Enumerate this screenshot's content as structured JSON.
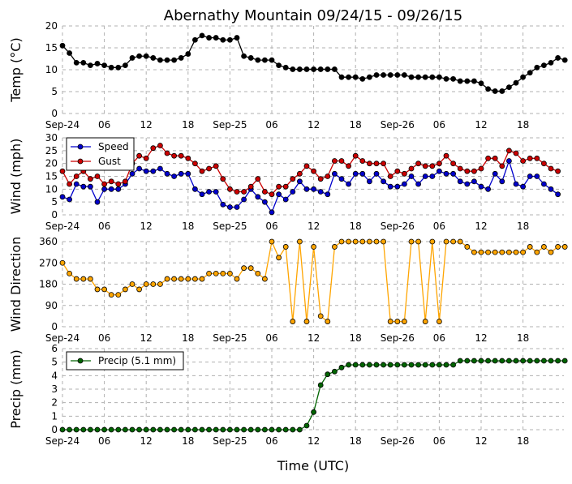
{
  "chart_data": [
    {
      "type": "line",
      "title": "Abernathy Mountain 09/24/15 - 09/26/15",
      "ylabel": "Temp (°C)",
      "ylim": [
        0,
        20
      ],
      "yticks": [
        "0",
        "5",
        "10",
        "15",
        "20"
      ],
      "x_start": "2015-09-24 00:00",
      "x_step_hours": 1,
      "xticks": [
        "Sep-24",
        "06",
        "12",
        "18",
        "Sep-25",
        "06",
        "12",
        "18",
        "Sep-26",
        "06",
        "12",
        "18"
      ],
      "grid": true,
      "series": [
        {
          "color": "#000000",
          "values": [
            15.5,
            13.8,
            11.6,
            11.6,
            11.0,
            11.4,
            11.0,
            10.5,
            10.5,
            11.0,
            12.7,
            13.1,
            13.1,
            12.7,
            12.2,
            12.2,
            12.2,
            12.7,
            13.6,
            16.8,
            17.8,
            17.3,
            17.3,
            16.8,
            16.8,
            17.3,
            13.1,
            12.7,
            12.2,
            12.2,
            12.2,
            11.0,
            10.5,
            10.1,
            10.1,
            10.1,
            10.1,
            10.1,
            10.1,
            10.1,
            8.3,
            8.3,
            8.3,
            7.9,
            8.3,
            8.8,
            8.8,
            8.8,
            8.8,
            8.8,
            8.3,
            8.3,
            8.3,
            8.3,
            8.3,
            7.9,
            7.9,
            7.4,
            7.4,
            7.4,
            6.9,
            5.6,
            5.1,
            5.1,
            6.0,
            7.0,
            8.3,
            9.3,
            10.5,
            11.0,
            11.6,
            12.7,
            12.2
          ]
        }
      ]
    },
    {
      "type": "line",
      "ylabel": "Wind (mph)",
      "ylim": [
        0,
        30
      ],
      "yticks": [
        "0",
        "5",
        "10",
        "15",
        "20",
        "25",
        "30"
      ],
      "xticks": [
        "Sep-24",
        "06",
        "12",
        "18",
        "Sep-25",
        "06",
        "12",
        "18",
        "Sep-26",
        "06",
        "12",
        "18"
      ],
      "grid": true,
      "legend": "upper-left",
      "series": [
        {
          "name": "Speed",
          "color": "#0000cc",
          "values": [
            7,
            6,
            12,
            11,
            11,
            5,
            10,
            10,
            10,
            12,
            16,
            18,
            17,
            17,
            18,
            16,
            15,
            16,
            16,
            10,
            8,
            9,
            9,
            4,
            3,
            3,
            6,
            10,
            7,
            5,
            1,
            8,
            6,
            9,
            13,
            10,
            10,
            9,
            8,
            16,
            14,
            12,
            16,
            16,
            13,
            16,
            13,
            11,
            11,
            12,
            15,
            12,
            15,
            15,
            17,
            16,
            16,
            13,
            12,
            13,
            11,
            10,
            16,
            13,
            21,
            12,
            11,
            15,
            15,
            12,
            10,
            8
          ]
        },
        {
          "name": "Gust",
          "color": "#cc0000",
          "values": [
            17,
            12,
            15,
            17,
            14,
            15,
            12,
            13,
            12,
            13,
            20,
            23,
            22,
            26,
            27,
            24,
            23,
            23,
            22,
            20,
            17,
            18,
            19,
            14,
            10,
            9,
            9,
            11,
            14,
            9,
            8,
            11,
            11,
            14,
            16,
            19,
            17,
            14,
            15,
            21,
            21,
            19,
            23,
            21,
            20,
            20,
            20,
            15,
            17,
            16,
            18,
            20,
            19,
            19,
            20,
            23,
            20,
            18,
            17,
            17,
            18,
            22,
            22,
            19,
            25,
            24,
            21,
            22,
            22,
            20,
            18,
            17
          ]
        }
      ]
    },
    {
      "type": "line",
      "ylabel": "Wind Direction",
      "ylim": [
        0,
        360
      ],
      "yticks": [
        "0",
        "90",
        "180",
        "270",
        "360"
      ],
      "xticks": [
        "Sep-24",
        "06",
        "12",
        "18",
        "Sep-25",
        "06",
        "12",
        "18",
        "Sep-26",
        "06",
        "12",
        "18"
      ],
      "grid": true,
      "series": [
        {
          "color": "#ffa500",
          "values": [
            270,
            225,
            202,
            202,
            202,
            158,
            158,
            135,
            135,
            158,
            180,
            158,
            180,
            180,
            180,
            202,
            202,
            202,
            202,
            202,
            202,
            225,
            225,
            225,
            225,
            202,
            248,
            248,
            225,
            202,
            360,
            292,
            338,
            22,
            360,
            22,
            338,
            45,
            22,
            338,
            360,
            360,
            360,
            360,
            360,
            360,
            360,
            22,
            22,
            22,
            360,
            360,
            22,
            360,
            22,
            360,
            360,
            360,
            338,
            315,
            315,
            315,
            315,
            315,
            315,
            315,
            315,
            338,
            315,
            338,
            315,
            338,
            338
          ]
        }
      ]
    },
    {
      "type": "line",
      "ylabel": "Precip (mm)",
      "xlabel": "Time (UTC)",
      "ylim": [
        0,
        6
      ],
      "yticks": [
        "0",
        "1",
        "2",
        "3",
        "4",
        "5",
        "6"
      ],
      "xticks": [
        "Sep-24",
        "06",
        "12",
        "18",
        "Sep-25",
        "06",
        "12",
        "18",
        "Sep-26",
        "06",
        "12",
        "18"
      ],
      "grid": true,
      "legend": "upper-left",
      "series": [
        {
          "name": "Precip (5.1 mm)",
          "color": "#006400",
          "values": [
            0,
            0,
            0,
            0,
            0,
            0,
            0,
            0,
            0,
            0,
            0,
            0,
            0,
            0,
            0,
            0,
            0,
            0,
            0,
            0,
            0,
            0,
            0,
            0,
            0,
            0,
            0,
            0,
            0,
            0,
            0,
            0,
            0,
            0,
            0,
            0.3,
            1.3,
            3.3,
            4.1,
            4.3,
            4.6,
            4.8,
            4.8,
            4.8,
            4.8,
            4.8,
            4.8,
            4.8,
            4.8,
            4.8,
            4.8,
            4.8,
            4.8,
            4.8,
            4.8,
            4.8,
            4.8,
            5.1,
            5.1,
            5.1,
            5.1,
            5.1,
            5.1,
            5.1,
            5.1,
            5.1,
            5.1,
            5.1,
            5.1,
            5.1,
            5.1,
            5.1,
            5.1
          ]
        }
      ]
    }
  ]
}
